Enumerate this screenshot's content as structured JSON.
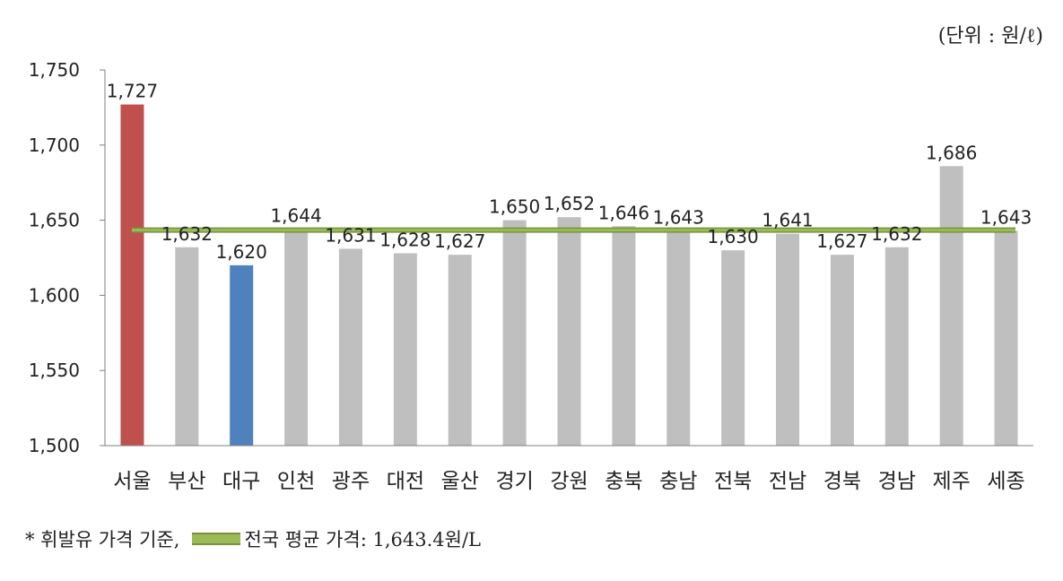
{
  "unit_note": "(단위 : 원/ℓ)",
  "footnote": {
    "prefix": "* 휘발유 가격 기준,",
    "legend_label": "전국 평균 가격: 1,643.4원/L"
  },
  "colors": {
    "default_bar": "#bfbfbf",
    "highest_bar": "#c0504d",
    "lowest_bar": "#4f81bd",
    "average_line": "#9bbb59",
    "axis": "#7f7f7f"
  },
  "chart_data": {
    "type": "bar",
    "categories": [
      "서울",
      "부산",
      "대구",
      "인천",
      "광주",
      "대전",
      "울산",
      "경기",
      "강원",
      "충북",
      "충남",
      "전북",
      "전남",
      "경북",
      "경남",
      "제주",
      "세종"
    ],
    "values": [
      1727,
      1632,
      1620,
      1644,
      1631,
      1628,
      1627,
      1650,
      1652,
      1646,
      1643,
      1630,
      1641,
      1627,
      1632,
      1686,
      1643
    ],
    "data_labels": [
      "1,727",
      "1,632",
      "1,620",
      "1,644",
      "1,631",
      "1,628",
      "1,627",
      "1,650",
      "1,652",
      "1,646",
      "1,643",
      "1,630",
      "1,641",
      "1,627",
      "1,632",
      "1,686",
      "1,643"
    ],
    "highlight": {
      "highest_index": 0,
      "lowest_index": 2
    },
    "average_line": {
      "value": 1643.4,
      "label": "전국 평균 가격: 1,643.4원/L"
    },
    "ylim": [
      1500,
      1750
    ],
    "yticks": [
      1500,
      1550,
      1600,
      1650,
      1700,
      1750
    ],
    "ytick_labels": [
      "1,500",
      "1,550",
      "1,600",
      "1,650",
      "1,700",
      "1,750"
    ],
    "title": "",
    "xlabel": "",
    "ylabel": "",
    "grid": false
  }
}
